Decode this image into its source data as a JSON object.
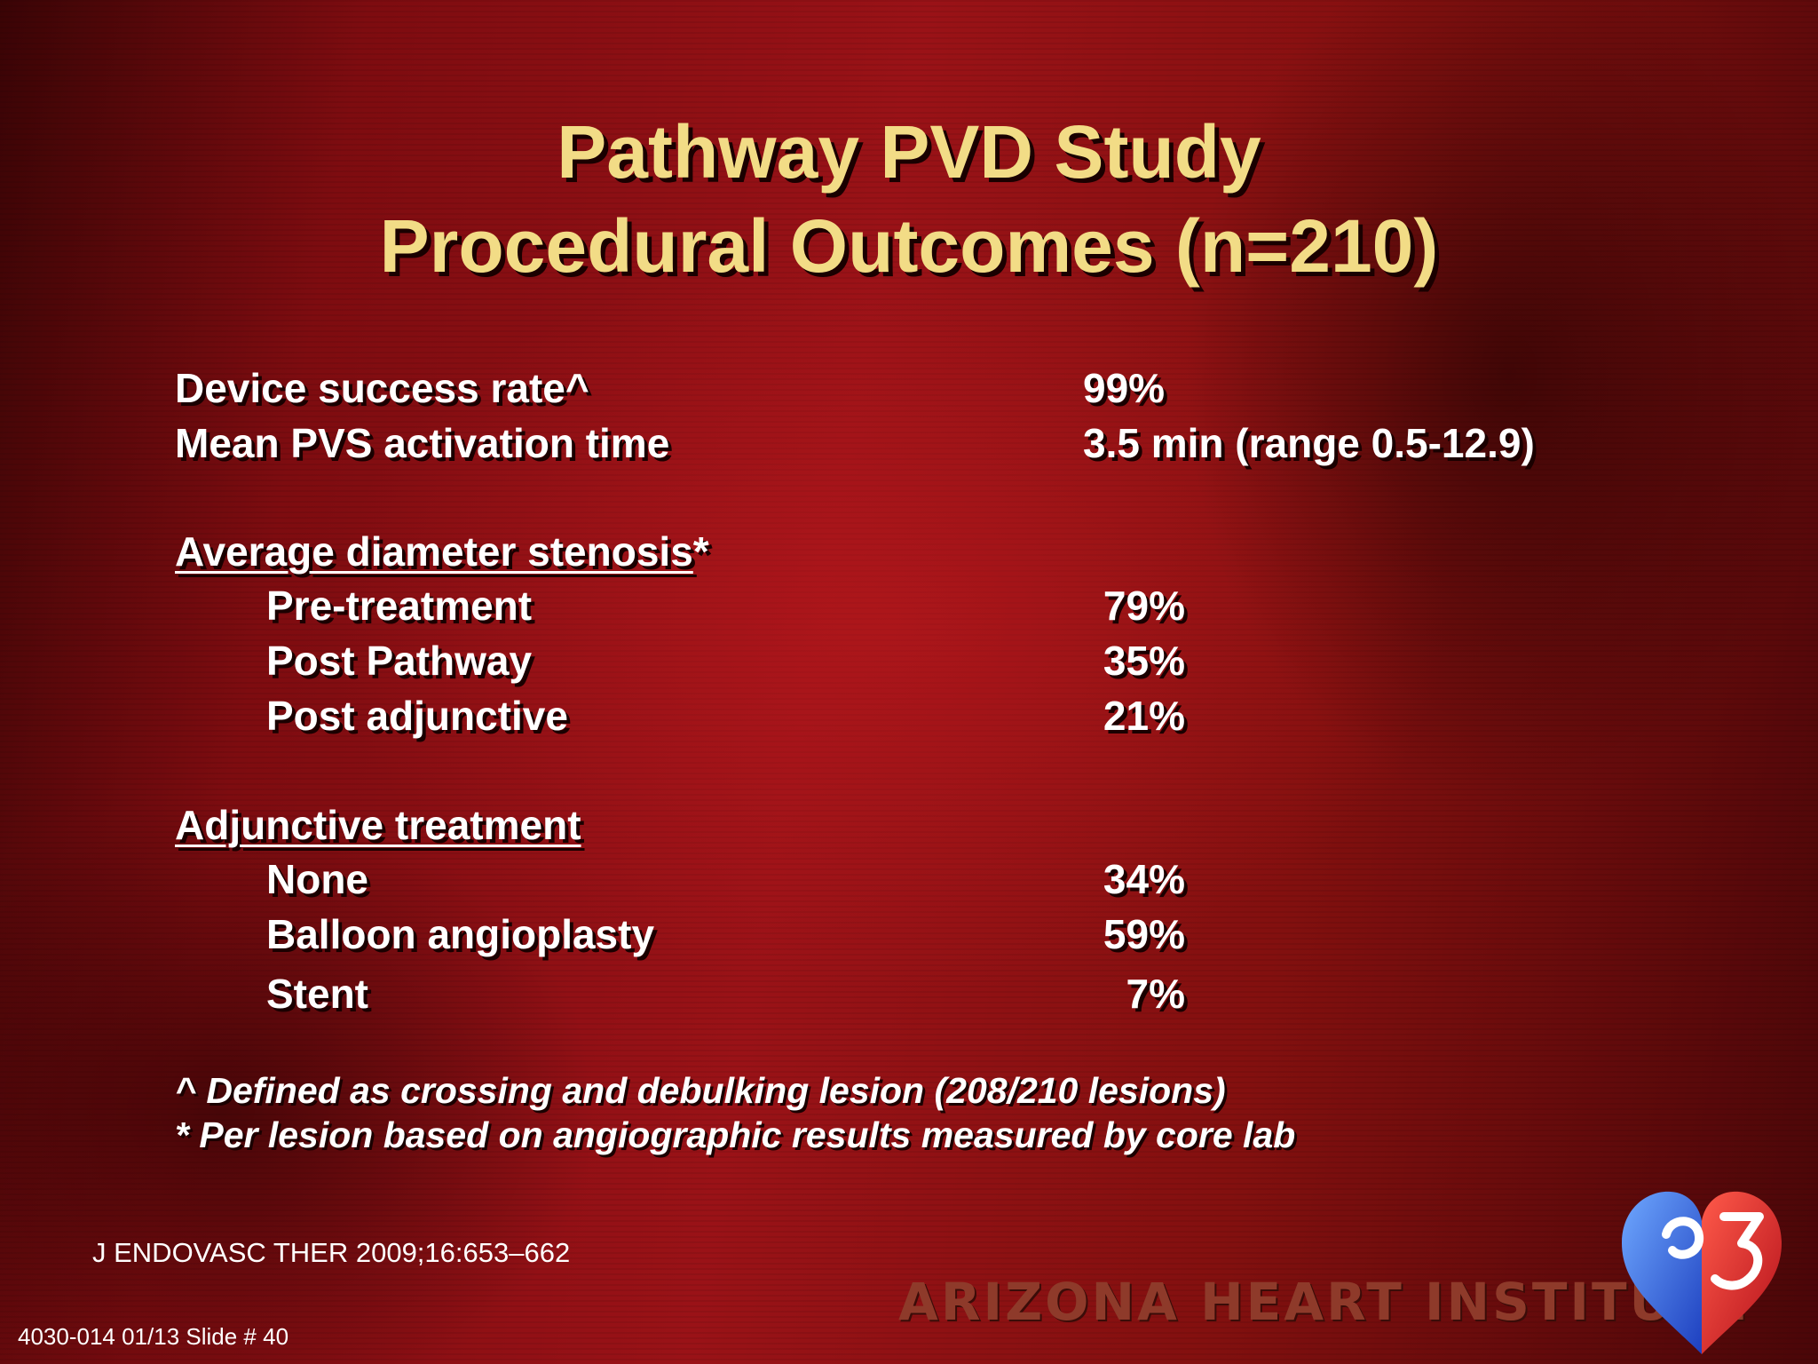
{
  "title": {
    "line1": "Pathway PVD Study",
    "line2": "Procedural Outcomes (n=210)"
  },
  "summary": [
    {
      "label": "Device success rate^",
      "value": "99%"
    },
    {
      "label": "Mean PVS activation time",
      "value": "3.5 min (range 0.5-12.9)"
    }
  ],
  "stenosis": {
    "heading": "Average diameter stenosis",
    "heading_suffix": "*",
    "items": [
      {
        "label": "Pre-treatment",
        "value": "79%"
      },
      {
        "label": "Post Pathway",
        "value": "35%"
      },
      {
        "label": "Post adjunctive",
        "value": "21%"
      }
    ]
  },
  "adjunctive": {
    "heading": "Adjunctive treatment",
    "items": [
      {
        "label": "None",
        "value": "34%"
      },
      {
        "label": "Balloon angioplasty",
        "value": "59%"
      },
      {
        "label": "Stent",
        "value": "7%"
      }
    ]
  },
  "footnotes": [
    "^ Defined as crossing and debulking lesion (208/210 lesions)",
    "* Per lesion based on angiographic results measured by core lab"
  ],
  "citation": "J ENDOVASC THER  2009;16:653–662",
  "slide_number": "4030-014  01/13 Slide # 40",
  "brand": "ARIZONA HEART INSTITUTE",
  "logo_icon": "heart-logo-icon",
  "colors": {
    "title": "#f2dc86",
    "text": "#ffffff",
    "background": "#8a0f14"
  }
}
